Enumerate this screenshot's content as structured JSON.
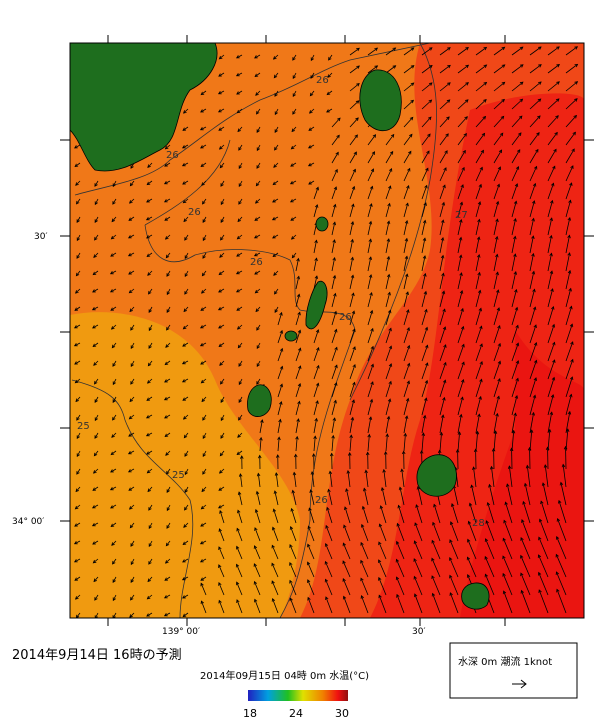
{
  "title": "2014年9月14日 16時の予測",
  "map": {
    "lat_labels": [
      "30′",
      "34° 00′"
    ],
    "lon_labels": [
      "139° 00′",
      "30′"
    ],
    "contour_labels": [
      "26",
      "26",
      "26",
      "26",
      "26",
      "26",
      "25",
      "25",
      "27",
      "28"
    ]
  },
  "colorbar": {
    "caption": "2014年09月15日 04時 0m 水温(°C)",
    "ticks": [
      18,
      24,
      30
    ]
  },
  "legend": {
    "text": "水深 0m 潮流 1knot"
  }
}
